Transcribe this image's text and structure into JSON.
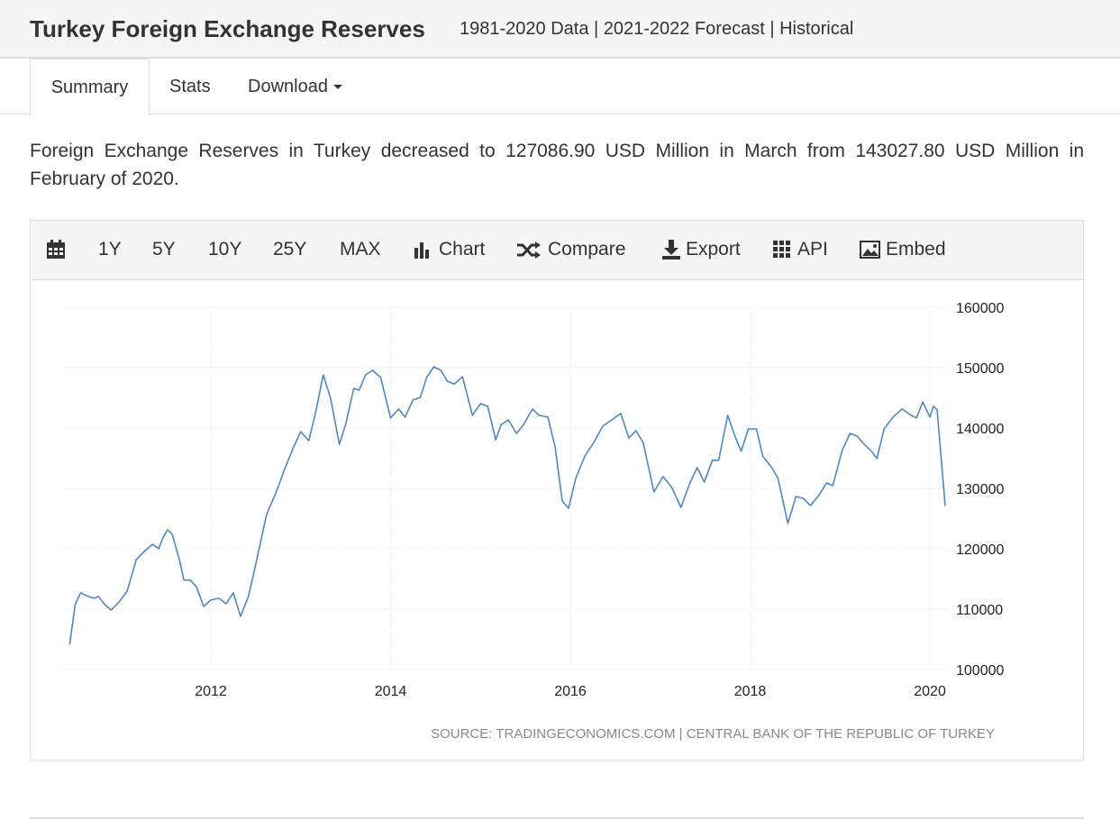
{
  "header": {
    "title": "Turkey Foreign Exchange Reserves",
    "subtitle": "1981-2020 Data | 2021-2022 Forecast | Historical"
  },
  "tabs": [
    "Summary",
    "Stats",
    "Download"
  ],
  "summary": "Foreign Exchange Reserves in Turkey decreased to 127086.90 USD Million in March from 143027.80 USD Million in February of 2020.",
  "toolbar": [
    "1Y",
    "5Y",
    "10Y",
    "25Y",
    "MAX",
    "Chart",
    "Compare",
    "Export",
    "API",
    "Embed"
  ],
  "chart_data": {
    "type": "line",
    "color": "#4f88c0",
    "grid": true,
    "source": "SOURCE: TRADINGECONOMICS.COM | CENTRAL BANK OF THE REPUBLIC OF TURKEY",
    "xlim": [
      2010.35,
      2020.2
    ],
    "xticks": [
      2012,
      2014,
      2016,
      2018,
      2020
    ],
    "ylim": [
      100000,
      160000
    ],
    "yticks": [
      100000,
      110000,
      120000,
      130000,
      140000,
      150000,
      160000
    ],
    "x": [
      2010.43,
      2010.49,
      2010.55,
      2010.62,
      2010.7,
      2010.75,
      2010.82,
      2010.89,
      2010.97,
      2011.07,
      2011.17,
      2011.27,
      2011.35,
      2011.42,
      2011.47,
      2011.52,
      2011.57,
      2011.65,
      2011.7,
      2011.77,
      2011.84,
      2011.92,
      2012.0,
      2012.09,
      2012.17,
      2012.25,
      2012.33,
      2012.42,
      2012.5,
      2012.62,
      2012.72,
      2012.82,
      2012.92,
      2013.0,
      2013.09,
      2013.17,
      2013.25,
      2013.33,
      2013.43,
      2013.5,
      2013.59,
      2013.65,
      2013.72,
      2013.8,
      2013.89,
      2014.0,
      2014.09,
      2014.16,
      2014.25,
      2014.33,
      2014.4,
      2014.48,
      2014.56,
      2014.63,
      2014.71,
      2014.8,
      2014.91,
      2015.0,
      2015.08,
      2015.17,
      2015.23,
      2015.31,
      2015.4,
      2015.48,
      2015.58,
      2015.65,
      2015.75,
      2015.83,
      2015.91,
      2015.98,
      2016.06,
      2016.16,
      2016.26,
      2016.36,
      2016.46,
      2016.56,
      2016.65,
      2016.73,
      2016.81,
      2016.93,
      2017.03,
      2017.13,
      2017.23,
      2017.33,
      2017.41,
      2017.49,
      2017.58,
      2017.65,
      2017.75,
      2017.83,
      2017.9,
      2017.98,
      2018.07,
      2018.14,
      2018.24,
      2018.31,
      2018.42,
      2018.51,
      2018.59,
      2018.67,
      2018.77,
      2018.85,
      2018.92,
      2019.02,
      2019.11,
      2019.19,
      2019.27,
      2019.35,
      2019.41,
      2019.49,
      2019.59,
      2019.69,
      2019.79,
      2019.85,
      2019.92,
      2020.0,
      2020.04,
      2020.08,
      2020.17
    ],
    "values": [
      104200,
      110750,
      112700,
      112200,
      111800,
      112100,
      110750,
      109850,
      111000,
      113000,
      118200,
      119700,
      120750,
      120000,
      121950,
      123150,
      122400,
      118200,
      114800,
      114800,
      113700,
      110450,
      111500,
      111800,
      110900,
      112700,
      108800,
      112200,
      117450,
      125650,
      129100,
      133150,
      136850,
      139400,
      137900,
      142850,
      148800,
      145050,
      137300,
      140600,
      146550,
      146250,
      148800,
      149550,
      148350,
      141650,
      143150,
      141800,
      144650,
      145050,
      148350,
      150150,
      149550,
      147750,
      147300,
      148500,
      142100,
      144050,
      143600,
      138050,
      140600,
      141350,
      139100,
      140600,
      143150,
      142100,
      141800,
      136850,
      127900,
      126700,
      131650,
      135350,
      137600,
      140300,
      141350,
      142400,
      138350,
      139550,
      137600,
      129400,
      131950,
      130150,
      126850,
      130900,
      133450,
      131050,
      134650,
      134650,
      142100,
      138650,
      136150,
      139850,
      139850,
      135350,
      133450,
      131650,
      124200,
      128650,
      128350,
      127150,
      128950,
      130900,
      130450,
      136150,
      139100,
      138650,
      137300,
      136150,
      134950,
      139850,
      141800,
      143150,
      142100,
      141650,
      144350,
      141800,
      143600,
      143027.8,
      127086.9
    ]
  }
}
